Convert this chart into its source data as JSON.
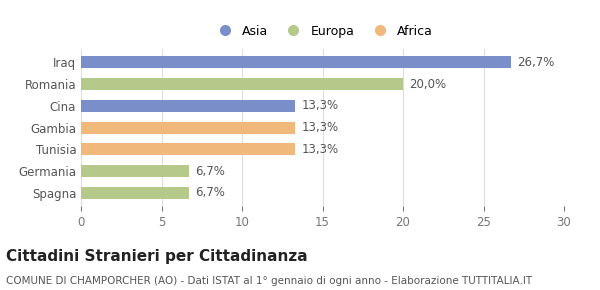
{
  "categories": [
    "Spagna",
    "Germania",
    "Tunisia",
    "Gambia",
    "Cina",
    "Romania",
    "Iraq"
  ],
  "values": [
    6.7,
    6.7,
    13.3,
    13.3,
    13.3,
    20.0,
    26.7
  ],
  "bar_colors": [
    "#b5c98a",
    "#b5c98a",
    "#f0b87a",
    "#f0b87a",
    "#7a8fc9",
    "#b5c98a",
    "#7a8fc9"
  ],
  "label_texts": [
    "6,7%",
    "6,7%",
    "13,3%",
    "13,3%",
    "13,3%",
    "20,0%",
    "26,7%"
  ],
  "legend_labels": [
    "Asia",
    "Europa",
    "Africa"
  ],
  "legend_colors": [
    "#7a8fc9",
    "#b5c98a",
    "#f0b87a"
  ],
  "xlim": [
    0,
    30
  ],
  "xticks": [
    0,
    5,
    10,
    15,
    20,
    25,
    30
  ],
  "title": "Cittadini Stranieri per Cittadinanza",
  "subtitle": "COMUNE DI CHAMPORCHER (AO) - Dati ISTAT al 1° gennaio di ogni anno - Elaborazione TUTTITALIA.IT",
  "title_fontsize": 11,
  "subtitle_fontsize": 7.5,
  "label_fontsize": 8.5,
  "tick_fontsize": 8.5,
  "background_color": "#ffffff",
  "bar_height": 0.55
}
